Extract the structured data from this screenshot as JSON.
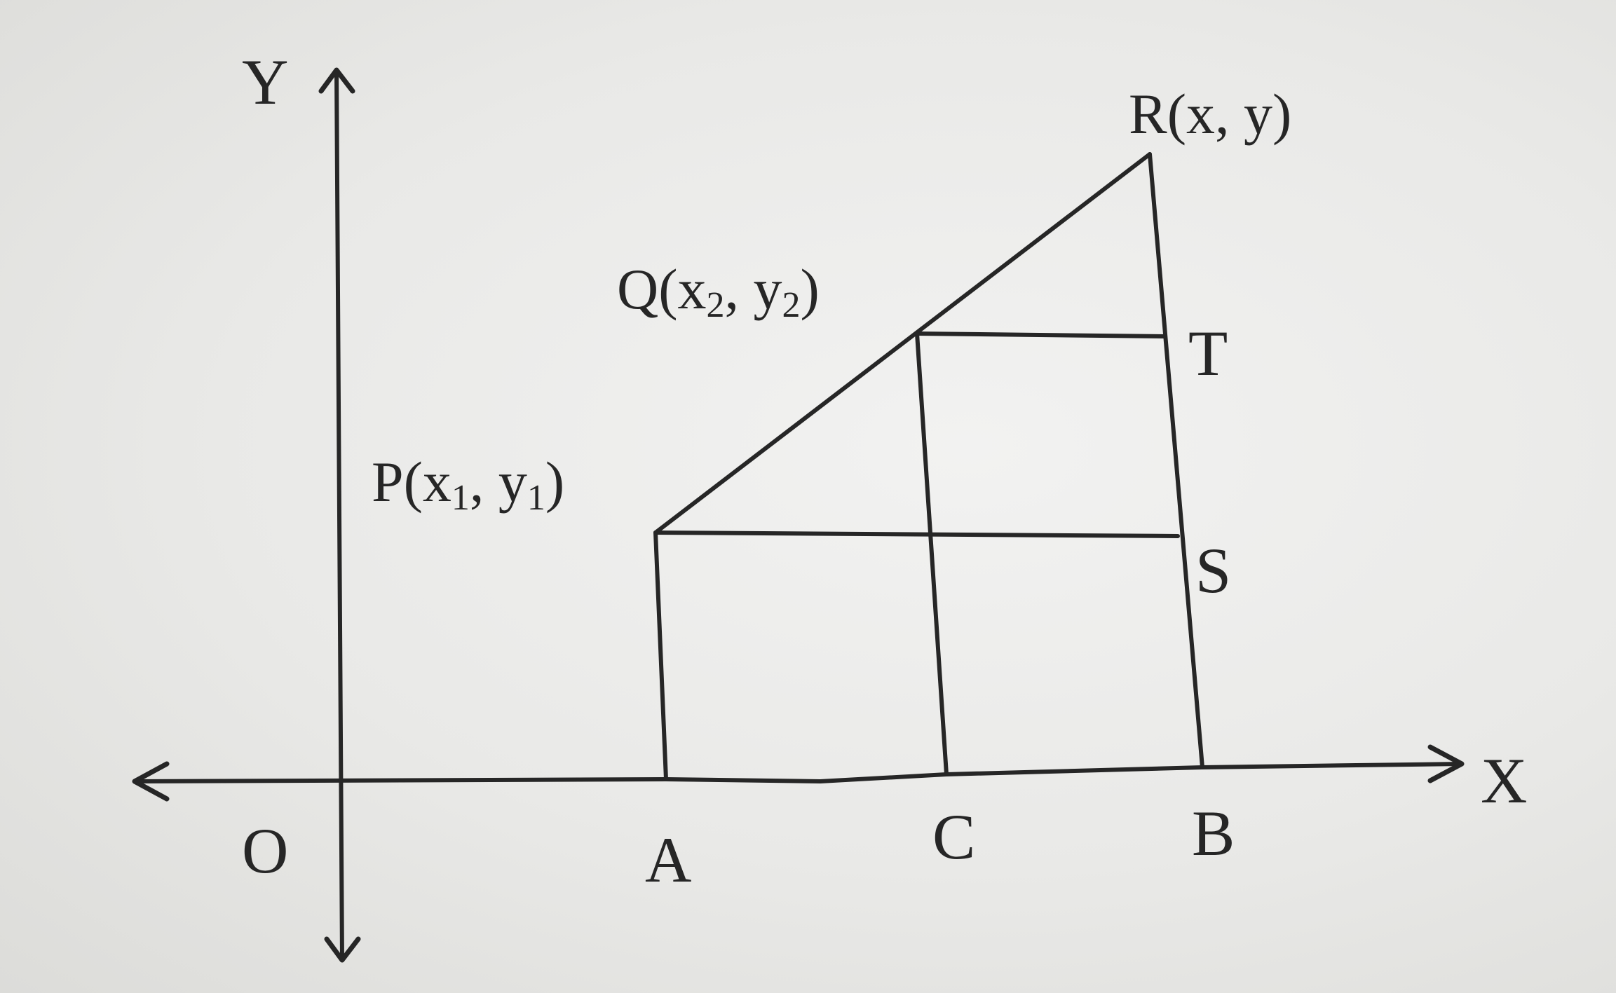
{
  "labels": {
    "y_axis": "Y",
    "x_axis": "X",
    "origin": "O",
    "A": "A",
    "C": "C",
    "B": "B",
    "S": "S",
    "T": "T"
  },
  "points": {
    "P": {
      "name": "P",
      "open": "(x",
      "sub1": "1",
      "mid": ", y",
      "sub2": "1",
      "close": ")"
    },
    "Q": {
      "name": "Q",
      "open": "(x",
      "sub1": "2",
      "mid": ", y",
      "sub2": "2",
      "close": ")"
    },
    "R": {
      "name": "R",
      "text": "(x, y)"
    }
  },
  "colors": {
    "ink": "#262626",
    "paper": "#e9e9e7"
  }
}
